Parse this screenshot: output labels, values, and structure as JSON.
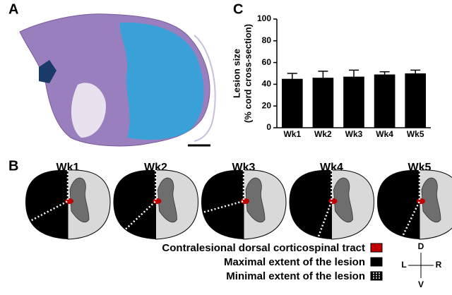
{
  "panel_labels": [
    "A",
    "B"
  ],
  "chart_data": {
    "type": "bar",
    "panel_label": "C",
    "ylabel": [
      "Lesion size",
      "(% cord cross-section)"
    ],
    "categories": [
      "Wk1",
      "Wk2",
      "Wk3",
      "Wk4",
      "Wk5"
    ],
    "values": [
      45,
      46,
      47,
      49,
      50
    ],
    "errors": [
      5,
      6,
      6,
      2.5,
      3
    ],
    "color": "#000000",
    "ylim": [
      0,
      100
    ],
    "yticks": [
      0,
      20,
      40,
      60,
      80,
      100
    ]
  },
  "panel_b": {
    "labels": [
      "Wk1",
      "Wk2",
      "Wk3",
      "Wk4",
      "Wk5"
    ],
    "legend": [
      "Contralesional dorsal corticospinal tract",
      "Maximal extent of the lesion",
      "Minimal extent of the lesion"
    ],
    "compass": {
      "up": "D",
      "down": "V",
      "left": "L",
      "right": "R"
    }
  }
}
